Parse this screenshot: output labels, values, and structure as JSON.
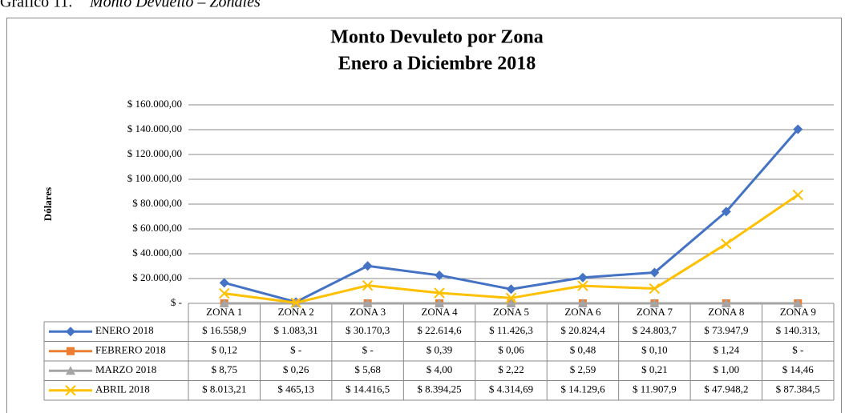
{
  "caption_label": "Gráfico 11.",
  "caption_title": "Monto Devuelto – Zonales",
  "chart_data": {
    "type": "line",
    "title": [
      "Monto Devuleto por Zona",
      "Enero a Diciembre 2018"
    ],
    "y_label": "Dólares",
    "categories": [
      "ZONA 1",
      "ZONA 2",
      "ZONA 3",
      "ZONA 4",
      "ZONA 5",
      "ZONA 6",
      "ZONA 7",
      "ZONA 8",
      "ZONA 9"
    ],
    "ylim": [
      0,
      160000
    ],
    "yticks": [
      {
        "value": 0,
        "label": "$ -"
      },
      {
        "value": 20000,
        "label": "$ 20.000,00"
      },
      {
        "value": 40000,
        "label": "$ 40.000,00"
      },
      {
        "value": 60000,
        "label": "$ 60.000,00"
      },
      {
        "value": 80000,
        "label": "$ 80.000,00"
      },
      {
        "value": 100000,
        "label": "$ 100.000,00"
      },
      {
        "value": 120000,
        "label": "$ 120.000,00"
      },
      {
        "value": 140000,
        "label": "$ 140.000,00"
      },
      {
        "value": 160000,
        "label": "$ 160.000,00"
      }
    ],
    "grid": true,
    "series": [
      {
        "name": "ENERO 2018",
        "color": "#4472c4",
        "marker": "diamond",
        "values": [
          16558.9,
          1083.31,
          30170.3,
          22614.6,
          11426.3,
          20824.4,
          24803.7,
          73947.9,
          140313
        ],
        "value_labels": [
          "$ 16.558,9",
          "$ 1.083,31",
          "$ 30.170,3",
          "$ 22.614,6",
          "$ 11.426,3",
          "$ 20.824,4",
          "$ 24.803,7",
          "$ 73.947,9",
          "$ 140.313,"
        ]
      },
      {
        "name": "FEBRERO 2018",
        "color": "#ed7d31",
        "marker": "square",
        "values": [
          0.12,
          0,
          0,
          0.39,
          0.06,
          0.48,
          0.1,
          1.24,
          0
        ],
        "value_labels": [
          "$ 0,12",
          "$ -",
          "$ -",
          "$ 0,39",
          "$ 0,06",
          "$ 0,48",
          "$ 0,10",
          "$ 1,24",
          "$ -"
        ]
      },
      {
        "name": "MARZO 2018",
        "color": "#a5a5a5",
        "marker": "triangle",
        "values": [
          8.75,
          0.26,
          5.68,
          4.0,
          2.22,
          2.59,
          0.21,
          1.0,
          14.46
        ],
        "value_labels": [
          "$ 8,75",
          "$ 0,26",
          "$ 5,68",
          "$ 4,00",
          "$ 2,22",
          "$ 2,59",
          "$ 0,21",
          "$ 1,00",
          "$ 14,46"
        ]
      },
      {
        "name": "ABRIL 2018",
        "color": "#ffc000",
        "marker": "x",
        "values": [
          8013.21,
          465.13,
          14416.5,
          8394.25,
          4314.69,
          14129.6,
          11907.9,
          47948.2,
          87384.5
        ],
        "value_labels": [
          "$ 8.013,21",
          "$ 465,13",
          "$ 14.416,5",
          "$ 8.394,25",
          "$ 4.314,69",
          "$ 14.129,6",
          "$ 11.907,9",
          "$ 47.948,2",
          "$ 87.384,5"
        ]
      }
    ]
  }
}
